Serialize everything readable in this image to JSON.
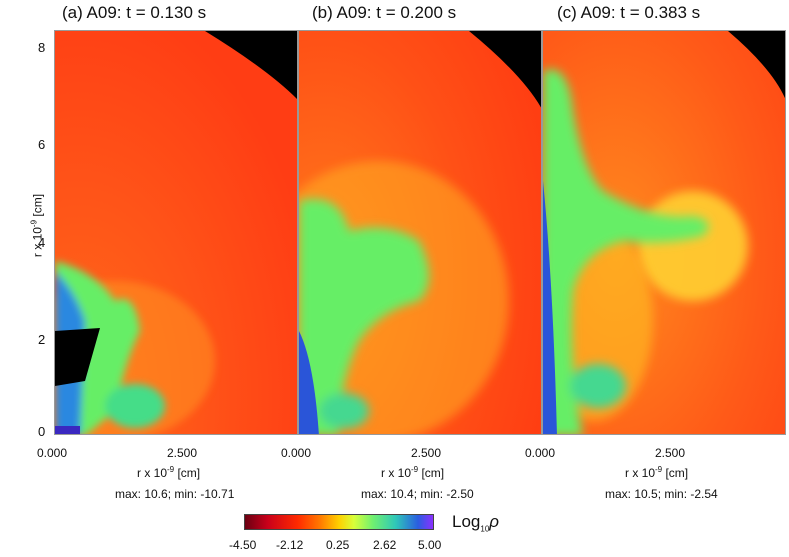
{
  "chart_data": [
    {
      "type": "heatmap",
      "title": "(a)  A09: t = 0.130 s",
      "xlabel": "r x 10",
      "xlabel_exp": "-9",
      "xlabel_unit": " [cm]",
      "ylabel": "r x 10",
      "ylabel_exp": "-9",
      "ylabel_unit": " [cm]",
      "x_ticks": [
        "0.000",
        "2.500"
      ],
      "y_ticks": [
        "0",
        "2",
        "4",
        "6",
        "8"
      ],
      "stats": "max:  10.6; min: -10.71"
    },
    {
      "type": "heatmap",
      "title": "(b)  A09: t = 0.200 s",
      "xlabel": "r x 10",
      "xlabel_exp": "-9",
      "xlabel_unit": " [cm]",
      "x_ticks": [
        "0.000",
        "2.500"
      ],
      "stats": "max:  10.4; min: -2.50"
    },
    {
      "type": "heatmap",
      "title": "(c)  A09: t = 0.383 s",
      "xlabel": "r x 10",
      "xlabel_exp": "-9",
      "xlabel_unit": " [cm]",
      "x_ticks": [
        "0.000",
        "2.500"
      ],
      "stats": "max:  10.5; min: -2.54"
    }
  ],
  "colorbar": {
    "label": "Log",
    "label_sub": "10",
    "label_symbol": "ρ",
    "ticks": [
      "-4.50",
      "-2.12",
      "0.25",
      "2.62",
      "5.00"
    ],
    "range": [
      -4.5,
      5.0
    ],
    "colors": [
      "#6b0012",
      "#c9001a",
      "#ff2a00",
      "#ff7a00",
      "#ffd000",
      "#d8ff3a",
      "#70f070",
      "#2fc8b8",
      "#2a5ee0",
      "#8a30ff"
    ]
  }
}
